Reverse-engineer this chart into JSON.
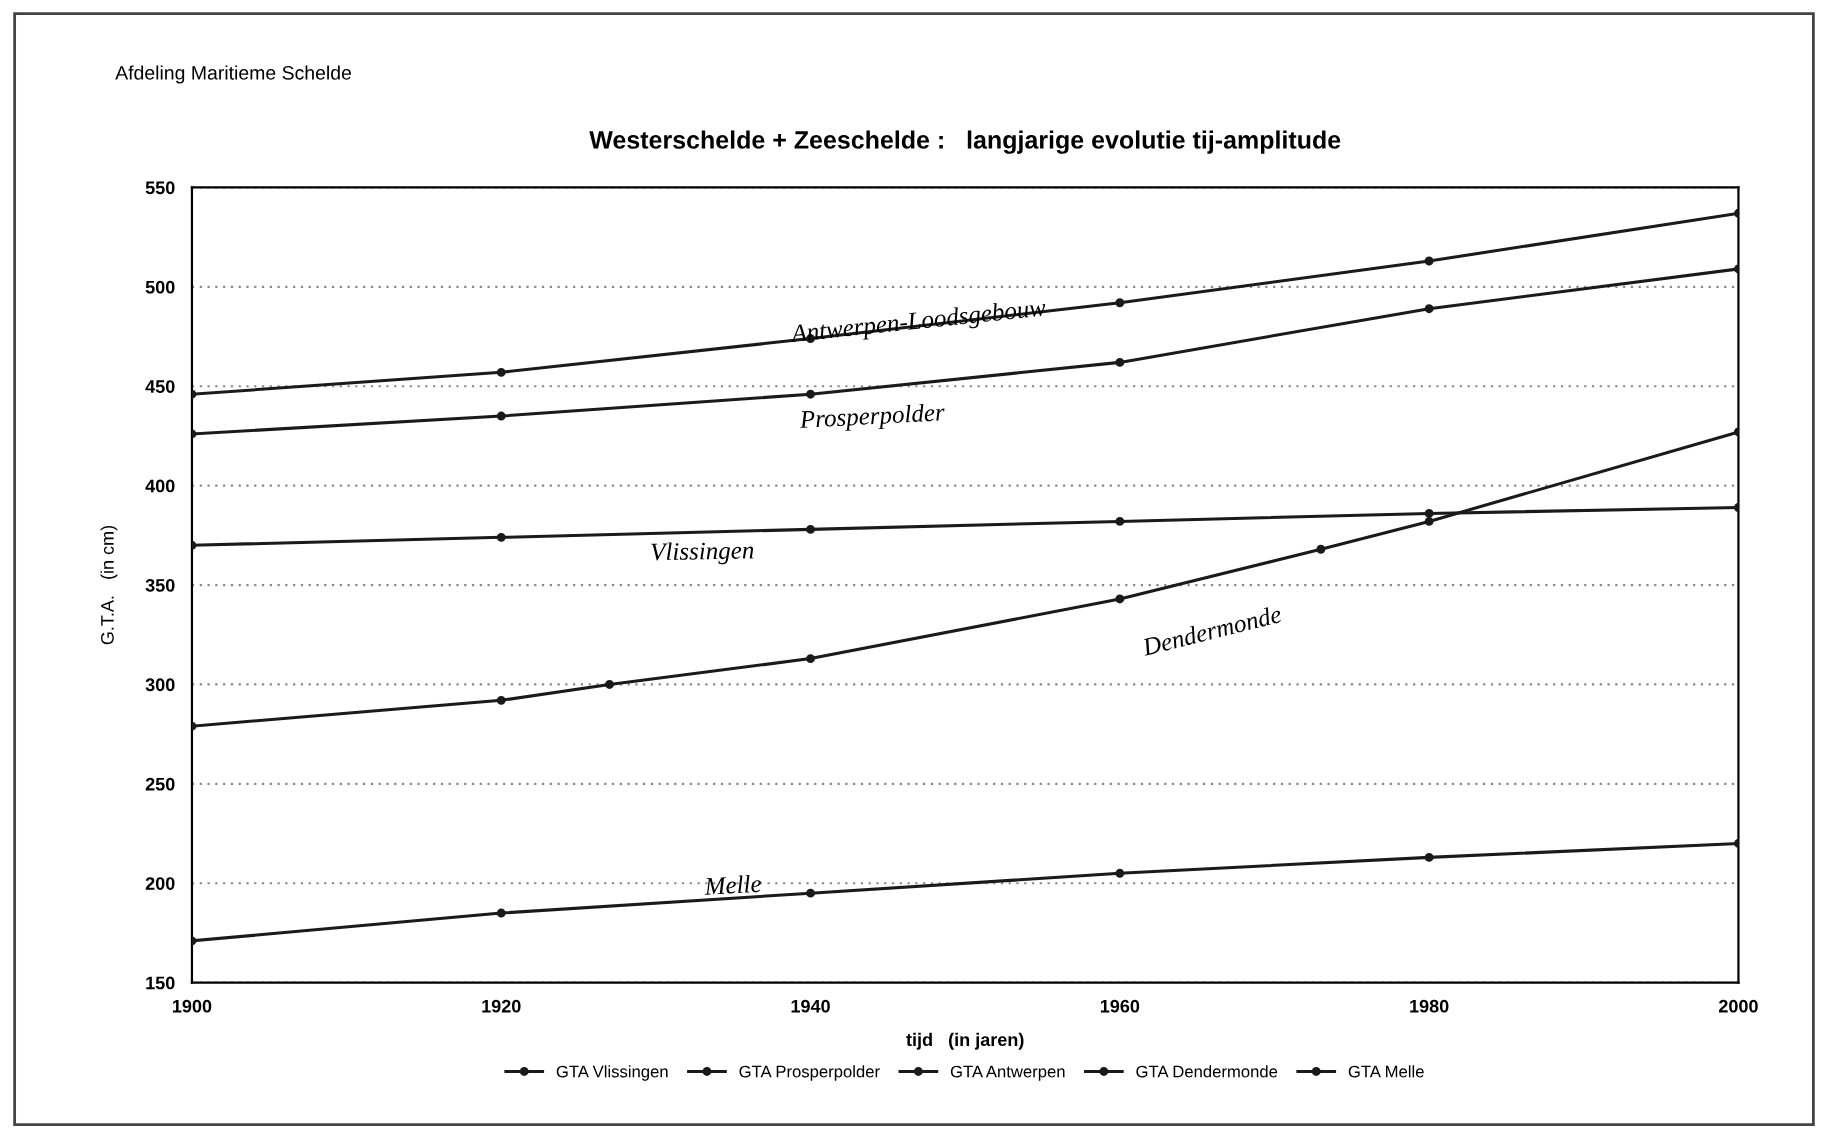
{
  "chart_data": {
    "type": "line",
    "title": "Westerschelde + Zeeschelde :   langjarige evolutie tij-amplitude",
    "xlabel": "tijd   (in jaren)",
    "ylabel": "G.T.A.   (in cm)",
    "xlim": [
      1900,
      2000
    ],
    "xticks": [
      1900,
      1920,
      1940,
      1960,
      1980,
      2000
    ],
    "ylim": [
      150,
      550
    ],
    "yticks": [
      150,
      200,
      250,
      300,
      350,
      400,
      450,
      500,
      550
    ],
    "grid": "y",
    "legend": "bottom",
    "marker": "circle",
    "line_style": "solid",
    "series": [
      {
        "name": "GTA Vlissingen",
        "color": "#1a1a1a",
        "x": [
          1900,
          1920,
          1940,
          1960,
          1980,
          2000
        ],
        "values": [
          370,
          374,
          378,
          382,
          386,
          389
        ]
      },
      {
        "name": "GTA Prosperpolder",
        "color": "#1a1a1a",
        "x": [
          1900,
          1920,
          1940,
          1960,
          1980,
          2000
        ],
        "values": [
          426,
          435,
          446,
          462,
          489,
          509
        ]
      },
      {
        "name": "GTA Antwerpen",
        "color": "#1a1a1a",
        "x": [
          1900,
          1920,
          1940,
          1960,
          1980,
          2000
        ],
        "values": [
          446,
          457,
          474,
          492,
          513,
          537
        ]
      },
      {
        "name": "GTA Dendermonde",
        "color": "#1a1a1a",
        "x": [
          1900,
          1920,
          1927,
          1940,
          1960,
          1973,
          1980,
          2000
        ],
        "values": [
          279,
          292,
          300,
          313,
          343,
          368,
          382,
          427
        ]
      },
      {
        "name": "GTA Melle",
        "color": "#1a1a1a",
        "x": [
          1900,
          1920,
          1940,
          1960,
          1980,
          2000
        ],
        "values": [
          171,
          185,
          195,
          205,
          213,
          220
        ]
      }
    ],
    "annotations": [
      "Afdeling Maritieme Schelde",
      "Antwerpen-Loodsgebouw",
      "Prosperpolder",
      "Vlissingen",
      "Dendermonde",
      "Melle"
    ]
  }
}
